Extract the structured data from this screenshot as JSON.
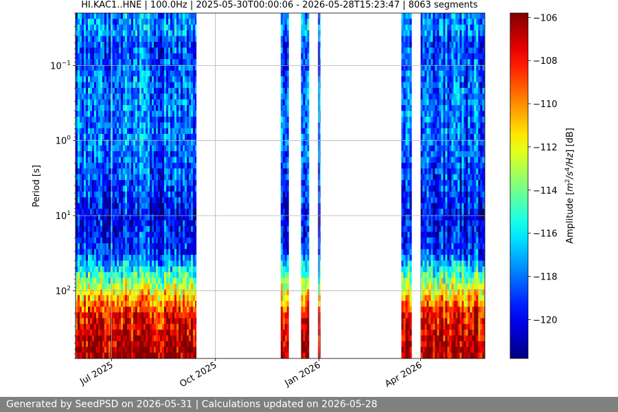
{
  "chart_data": {
    "type": "heatmap",
    "title": "HI.KAC1..HNE | 100.0Hz | 2025-05-30T00:00:06 - 2026-05-28T15:23:47 | 8063 segments",
    "xlabel": "",
    "ylabel": "Period [s]",
    "y_scale": "log",
    "y_inverted": true,
    "ylim": [
      0.02,
      800
    ],
    "xlim": [
      "2025-05-30",
      "2026-05-28"
    ],
    "x_ticks": [
      {
        "date": "2025-07-01",
        "label": "Jul 2025"
      },
      {
        "date": "2025-10-01",
        "label": "Oct 2025"
      },
      {
        "date": "2026-01-01",
        "label": "Jan 2026"
      },
      {
        "date": "2026-04-01",
        "label": "Apr 2026"
      }
    ],
    "y_ticks": [
      {
        "value": 0.1,
        "base": "10",
        "exp": "−1"
      },
      {
        "value": 1,
        "base": "10",
        "exp": "0"
      },
      {
        "value": 10,
        "base": "10",
        "exp": "1"
      },
      {
        "value": 100,
        "base": "10",
        "exp": "2"
      }
    ],
    "grid": true,
    "colorbar": {
      "label_html": "Amplitude [m²/s⁴/Hz] [dB]",
      "label_parts": [
        {
          "t": "Amplitude [",
          "s": "n"
        },
        {
          "t": "m",
          "s": "i"
        },
        {
          "t": "2",
          "s": "sup"
        },
        {
          "t": "/s",
          "s": "i"
        },
        {
          "t": "4",
          "s": "sup"
        },
        {
          "t": "/Hz",
          "s": "i"
        },
        {
          "t": "] [dB]",
          "s": "n"
        }
      ],
      "range": [
        -121.8,
        -105.8
      ],
      "ticks": [
        {
          "value": -106,
          "label": "−106"
        },
        {
          "value": -108,
          "label": "−108"
        },
        {
          "value": -110,
          "label": "−110"
        },
        {
          "value": -112,
          "label": "−112"
        },
        {
          "value": -114,
          "label": "−114"
        },
        {
          "value": -116,
          "label": "−116"
        },
        {
          "value": -118,
          "label": "−118"
        },
        {
          "value": -120,
          "label": "−120"
        }
      ],
      "colormap": "jet"
    },
    "data_intervals": [
      {
        "start": "2025-05-30",
        "end": "2025-09-14"
      },
      {
        "start": "2025-11-28",
        "end": "2025-12-05"
      },
      {
        "start": "2025-12-16",
        "end": "2025-12-23"
      },
      {
        "start": "2025-12-31",
        "end": "2026-01-02"
      },
      {
        "start": "2026-03-15",
        "end": "2026-03-24"
      },
      {
        "start": "2026-04-01",
        "end": "2026-05-28"
      }
    ],
    "spectral_profile": [
      {
        "period": 0.02,
        "amplitude": -118
      },
      {
        "period": 0.035,
        "amplitude": -117
      },
      {
        "period": 0.05,
        "amplitude": -119
      },
      {
        "period": 0.2,
        "amplitude": -118
      },
      {
        "period": 1,
        "amplitude": -118
      },
      {
        "period": 5,
        "amplitude": -119
      },
      {
        "period": 10,
        "amplitude": -120
      },
      {
        "period": 30,
        "amplitude": -119
      },
      {
        "period": 60,
        "amplitude": -115
      },
      {
        "period": 100,
        "amplitude": -112
      },
      {
        "period": 200,
        "amplitude": -108
      },
      {
        "period": 500,
        "amplitude": -106.5
      },
      {
        "period": 800,
        "amplitude": -106
      }
    ]
  },
  "footer": {
    "text": "Generated by SeedPSD on 2026-05-31 | Calculations updated on 2026-05-28"
  }
}
